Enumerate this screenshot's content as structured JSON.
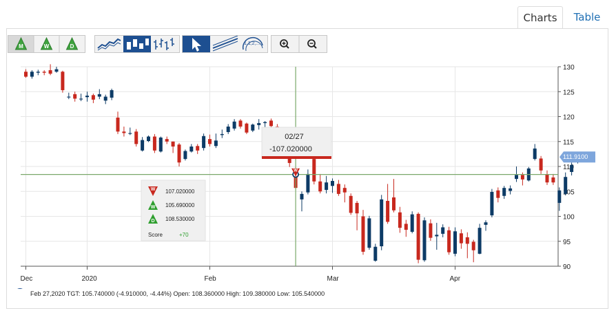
{
  "tabs": [
    {
      "label": "Charts",
      "active": true
    },
    {
      "label": "Table",
      "active": false
    }
  ],
  "toolbar": {
    "period_buttons": [
      "M",
      "W",
      "D"
    ],
    "chart_type_buttons": [
      "line-chart-icon",
      "candlestick-icon",
      "ohlc-bar-icon"
    ],
    "tool_buttons": [
      "pointer-arrow-icon",
      "trendline-icon",
      "fibonacci-icon"
    ],
    "fib_label": "1,1,2,...",
    "zoom_buttons": [
      "zoom-in-icon",
      "zoom-out-icon"
    ]
  },
  "tooltip": {
    "date": "02/27",
    "value": "-107.020000"
  },
  "score_box": {
    "rows": [
      {
        "letter": "W",
        "value": "107.020000",
        "color": "#c8281e",
        "dir": "down"
      },
      {
        "letter": "W",
        "value": "105.690000",
        "color": "#2e9e2e",
        "dir": "up"
      },
      {
        "letter": "D",
        "value": "108.530000",
        "color": "#2e9e2e",
        "dir": "up"
      }
    ],
    "score_label": "Score",
    "score_value": "+70"
  },
  "price_tag": "111.9100",
  "footer_text": "Feb 27,2020 TGT: 105.740000 (-4.910000, -4.44%) Open: 108.360000 High: 109.380000 Low: 105.540000",
  "colors": {
    "up": "#0d3b66",
    "down": "#c8281e",
    "crosshair": "#7aa86a",
    "tag": "#7ea6dc"
  },
  "chart_data": {
    "type": "candlestick",
    "y_ticks": [
      90,
      95,
      100,
      105,
      110,
      115,
      120,
      125,
      130
    ],
    "ylim": [
      90,
      130
    ],
    "x_tick_labels": [
      {
        "label": "Dec",
        "index": 0
      },
      {
        "label": "2020",
        "index": 10
      },
      {
        "label": "Feb",
        "index": 30
      },
      {
        "label": "Mar",
        "index": 50
      },
      {
        "label": "Apr",
        "index": 70
      }
    ],
    "crosshair": {
      "index": 44,
      "price": 108.4
    },
    "candles": [
      [
        129,
        128,
        129.5,
        127.8
      ],
      [
        128,
        129,
        129.3,
        127.6
      ],
      [
        128.8,
        129,
        129.4,
        128.3
      ],
      [
        129,
        128.8,
        129.3,
        128.3
      ],
      [
        129.3,
        128.6,
        130.5,
        128.3
      ],
      [
        129,
        129.5,
        130,
        128.8
      ],
      [
        129,
        125.3,
        129.2,
        124.8
      ],
      [
        124,
        124,
        124.8,
        123.5
      ],
      [
        124.5,
        123.6,
        125,
        123
      ],
      [
        123.6,
        123.6,
        124.6,
        123.1
      ],
      [
        123.9,
        124.2,
        125,
        123
      ],
      [
        124.3,
        123.4,
        124.6,
        122.7
      ],
      [
        124,
        124.5,
        125.5,
        123.5
      ],
      [
        123.2,
        124,
        124.4,
        122.5
      ],
      [
        123.8,
        125.3,
        125.6,
        123.3
      ],
      [
        119.8,
        117,
        121,
        116.5
      ],
      [
        117,
        116.7,
        118,
        116
      ],
      [
        116.7,
        116.7,
        117.8,
        116.3
      ],
      [
        117,
        114.5,
        117.5,
        114
      ],
      [
        113.2,
        115.3,
        115.9,
        113
      ],
      [
        115.1,
        116,
        116.2,
        114.9
      ],
      [
        116,
        113.2,
        116.5,
        112.7
      ],
      [
        113,
        115.8,
        116,
        112.8
      ],
      [
        115.5,
        115,
        116,
        114.5
      ],
      [
        115,
        114,
        115,
        112.7
      ],
      [
        114.4,
        110.8,
        114.7,
        110
      ],
      [
        111.5,
        113.1,
        113.4,
        111.2
      ],
      [
        113,
        114,
        114.5,
        112.8
      ],
      [
        114.1,
        113.2,
        114.5,
        112.5
      ],
      [
        113.7,
        116.1,
        116.6,
        113.2
      ],
      [
        115.5,
        114.5,
        116.4,
        114
      ],
      [
        114.1,
        115.2,
        116.6,
        113.7
      ],
      [
        116.3,
        116.5,
        117.4,
        115.7
      ],
      [
        116.9,
        118,
        118.5,
        116.5
      ],
      [
        117.6,
        119,
        119.5,
        117.2
      ],
      [
        119.2,
        118,
        119.5,
        117.6
      ],
      [
        118.6,
        116.8,
        118.8,
        116.5
      ],
      [
        117.2,
        118.4,
        118.6,
        116.9
      ],
      [
        118.3,
        118.7,
        119.5,
        117.4
      ],
      [
        118.7,
        118.9,
        119.1,
        117.6
      ],
      [
        119.2,
        118.1,
        119.6,
        117.6
      ],
      [
        118,
        117.3,
        118.5,
        116
      ],
      [
        116.5,
        115,
        117,
        114
      ],
      [
        112.5,
        110.7,
        113.2,
        109.9
      ],
      [
        108.4,
        105.7,
        109.4,
        105.5
      ],
      [
        103.4,
        104.5,
        105,
        101
      ],
      [
        104.8,
        108.5,
        109.4,
        104.4
      ],
      [
        111.5,
        107,
        111.6,
        106.4
      ],
      [
        107,
        105,
        108.5,
        104.6
      ],
      [
        105.3,
        106.8,
        108.1,
        104.6
      ],
      [
        106.1,
        107.1,
        107.6,
        104.7
      ],
      [
        106.5,
        104.5,
        107.3,
        104.1
      ],
      [
        105.7,
        104.8,
        106.4,
        102.8
      ],
      [
        104.1,
        100.7,
        104.6,
        100.3
      ],
      [
        102.7,
        100.6,
        103.1,
        97.2
      ],
      [
        100,
        92.9,
        101.3,
        92.3
      ],
      [
        93.7,
        99.6,
        100.1,
        93.3
      ],
      [
        91.1,
        93.9,
        94.5,
        90.9
      ],
      [
        94,
        103.4,
        104.3,
        93.2
      ],
      [
        103.1,
        98.9,
        106.5,
        98.5
      ],
      [
        103.8,
        101.2,
        107.5,
        100.8
      ],
      [
        100.8,
        97.7,
        101.9,
        96.7
      ],
      [
        98.5,
        97.3,
        99.3,
        95.9
      ],
      [
        96.9,
        100.4,
        101,
        96.6
      ],
      [
        100.5,
        91.3,
        100.8,
        90.6
      ],
      [
        91.2,
        99.2,
        99.8,
        90.9
      ],
      [
        98.6,
        95.7,
        99.4,
        95.1
      ],
      [
        96,
        96.3,
        98.7,
        93.3
      ],
      [
        96.5,
        97.8,
        98.4,
        95.8
      ],
      [
        97.2,
        92.8,
        97.9,
        92.3
      ],
      [
        92.5,
        97,
        97.8,
        92
      ],
      [
        96.6,
        94.6,
        97.4,
        93.5
      ],
      [
        95.8,
        94.5,
        96.8,
        91.6
      ],
      [
        94.9,
        93.2,
        95.3,
        90.8
      ],
      [
        92.5,
        97.7,
        98.5,
        92.4
      ],
      [
        98.3,
        98.8,
        99.2,
        97.1
      ],
      [
        100.2,
        104.9,
        105.5,
        99.8
      ],
      [
        105.2,
        103.7,
        105.8,
        102.8
      ],
      [
        104.1,
        105.7,
        106.1,
        103.5
      ],
      [
        105.1,
        105.6,
        106.2,
        104.4
      ],
      [
        107.5,
        108.3,
        110,
        106.9
      ],
      [
        108.3,
        107.4,
        108.8,
        106.2
      ],
      [
        107.2,
        109.6,
        109.9,
        107
      ],
      [
        111.5,
        113.6,
        114.5,
        111.2
      ],
      [
        111.6,
        109.2,
        112.1,
        108.5
      ],
      [
        108.4,
        106.8,
        109.2,
        106.3
      ],
      [
        107.8,
        106.8,
        108.5,
        106.3
      ],
      [
        102.7,
        105.2,
        105.8,
        101.1
      ],
      [
        104.5,
        107.9,
        108.8,
        104.2
      ],
      [
        108.9,
        110.3,
        110.8,
        108.2
      ],
      [
        111.4,
        111.9,
        112.9,
        110.6
      ]
    ]
  }
}
